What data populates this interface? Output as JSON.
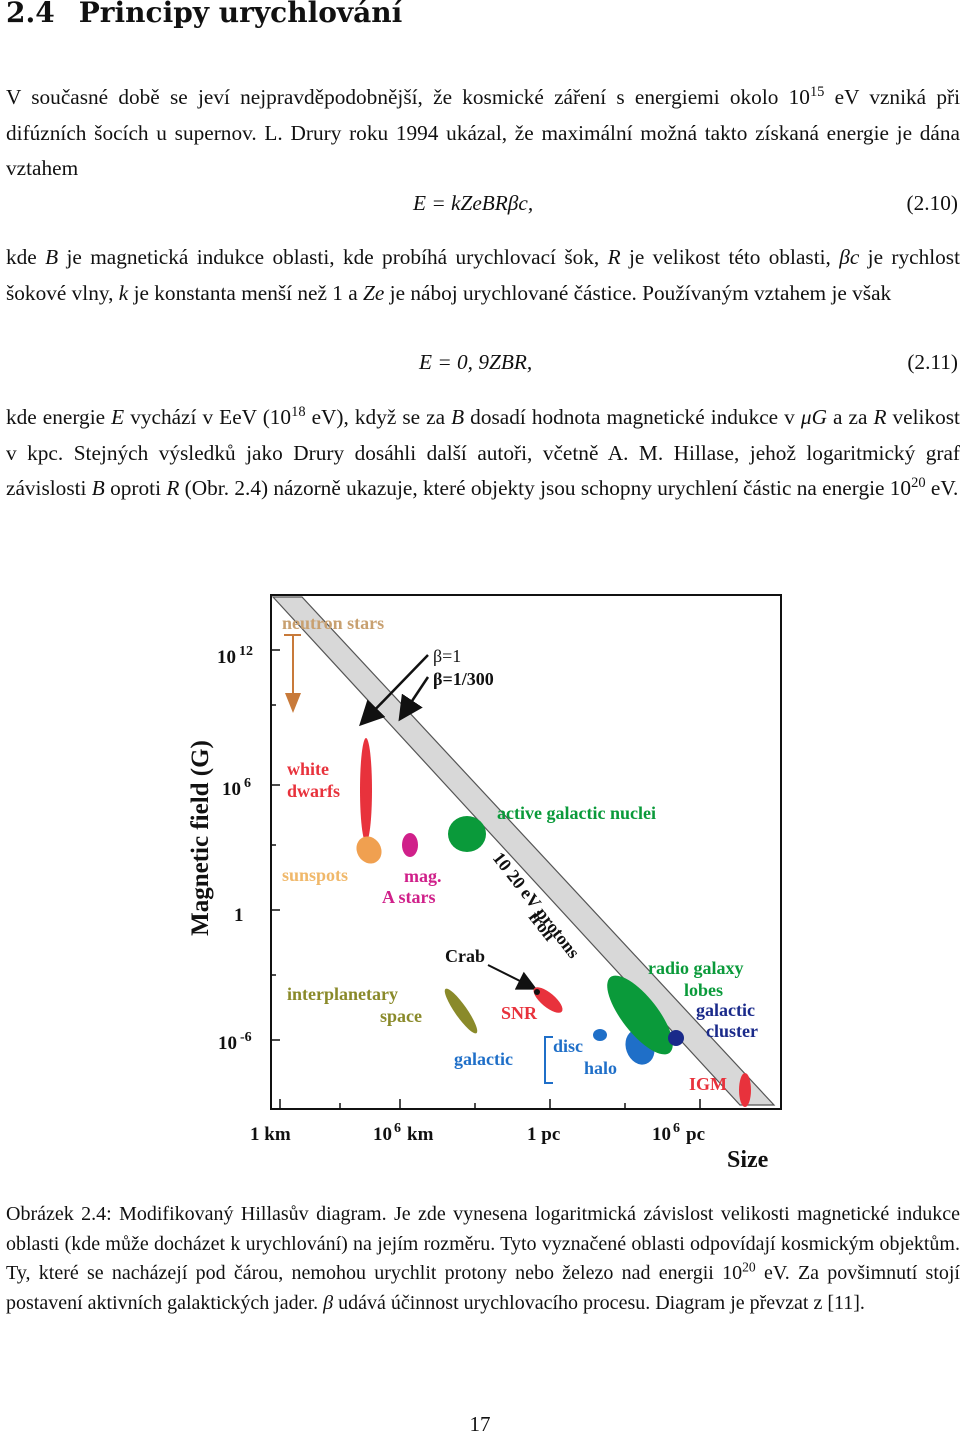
{
  "heading": {
    "number": "2.4",
    "title": "Principy urychlování"
  },
  "para1": {
    "t1": "V současné době se jeví nejpravděpodobnější, že kosmické záření s energiemi okolo 10",
    "sup1": "15",
    "t2": " eV vzniká při difúzních šocích u supernov. L. Drury roku 1994 ukázal, že maximální možná takto získaná energie je dána vztahem"
  },
  "eq1": {
    "formula": "E = kZeBRβc,",
    "number": "(2.10)"
  },
  "para2": {
    "t1": "kde ",
    "B": "B",
    "t2": " je magnetická indukce oblasti, kde probíhá urychlovací šok, ",
    "R": "R",
    "t3": " je velikost této oblasti, ",
    "bc": "βc",
    "t4": " je rychlost šokové vlny, ",
    "k": "k",
    "t5": " je konstanta menší než 1 a ",
    "Ze": "Ze",
    "t6": " je náboj urychlované částice. Používaným vztahem je však"
  },
  "eq2": {
    "formula": "E = 0, 9ZBR,",
    "number": "(2.11)"
  },
  "para3": {
    "t1": "kde energie ",
    "E": "E",
    "t2": " vychází v EeV (10",
    "sup1": "18",
    "t3": " eV), když se za ",
    "B": "B",
    "t4": " dosadí hodnota magnetické indukce v ",
    "uG": "μG",
    "t5": " a za ",
    "R": "R",
    "t6": " velikost v kpc. Stejných výsledků jako Drury dosáhli další autoři, včetně A. M. Hillase, jehož logaritmický graf závislosti ",
    "B2": "B",
    "t7": " oproti ",
    "R2": "R",
    "t8": " (Obr. 2.4) názorně ukazuje, které objekty jsou schopny urychlení částic na energie 10",
    "sup2": "20",
    "t9": " eV."
  },
  "figure": {
    "y_axis_label": "Magnetic field (G)",
    "x_axis_label": "Size",
    "y_ticks": [
      {
        "base": "10",
        "exp": "12"
      },
      {
        "base": "10",
        "exp": "6"
      },
      {
        "base": "1",
        "exp": ""
      },
      {
        "base": "10",
        "exp": "-6"
      }
    ],
    "x_ticks": [
      {
        "base": "1 km",
        "exp": ""
      },
      {
        "base": "10",
        "exp": "6",
        "unit": "km"
      },
      {
        "base": "1 pc",
        "exp": ""
      },
      {
        "base": "10",
        "exp": "6",
        "unit": "pc"
      }
    ],
    "labels": {
      "neutron_stars": "neutron stars",
      "beta1": "β=1",
      "beta300": "β=1/300",
      "white": "white",
      "dwarfs": "dwarfs",
      "agn": "active galactic nuclei",
      "sunspots": "sunspots",
      "mag": "mag.",
      "astars": "A stars",
      "protons": "10  20  eV protons",
      "iron": "iron",
      "crab": "Crab",
      "snr": "SNR",
      "interplanetary": "interplanetary",
      "space": "space",
      "galactic": "galactic",
      "disc": "disc",
      "halo": "halo",
      "radio_galaxy": "radio galaxy",
      "lobes": "lobes",
      "galactic2": "galactic",
      "cluster": "cluster",
      "igm": "IGM"
    },
    "colors": {
      "red": "#e8323c",
      "orange": "#f0a050",
      "magenta": "#d0208a",
      "green": "#0a9a3a",
      "olive": "#8a8a2a",
      "blue": "#1f6fc8",
      "navy": "#1a2a8a",
      "band": "#d8d8d8",
      "brown_arrow": "#c87a3a"
    }
  },
  "caption": {
    "t1": "Obrázek 2.4: Modifikovaný Hillasův diagram. Je zde vynesena logaritmická závislost velikosti magnetické indukce oblasti (kde může docházet k urychlování) na jejím rozměru. Tyto vyznačené oblasti odpovídají kosmickým objektům. Ty, které se nacházejí pod čárou, nemohou urychlit protony nebo železo nad energii 10",
    "sup": "20",
    "t2": " eV. Za povšimnutí stojí postavení aktivních galaktických jader. ",
    "beta": "β",
    "t3": " udává účinnost urychlovacího procesu. Diagram je převzat z [11]."
  },
  "page_number": "17"
}
